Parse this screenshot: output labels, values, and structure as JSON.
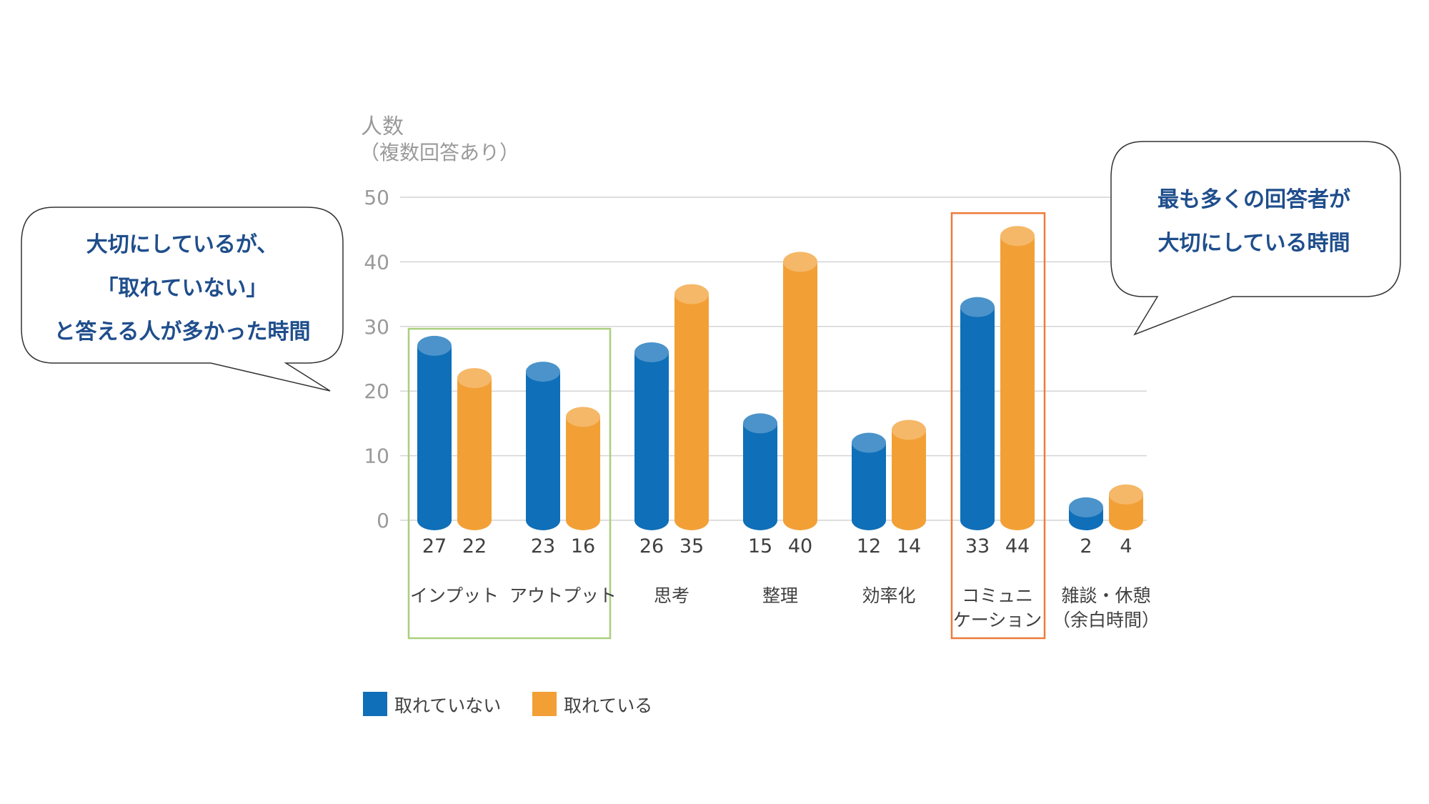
{
  "chart_data": {
    "type": "bar",
    "y_axis_title": [
      "人数",
      "（複数回答あり）"
    ],
    "ylim": [
      0,
      50
    ],
    "yticks": [
      0,
      10,
      20,
      30,
      40,
      50
    ],
    "grid": true,
    "legend_position": "bottom-left",
    "categories": [
      [
        "インプット"
      ],
      [
        "アウトプット"
      ],
      [
        "思考"
      ],
      [
        "整理"
      ],
      [
        "効率化"
      ],
      [
        "コミュニ",
        "ケーション"
      ],
      [
        "雑談・休憩",
        "（余白時間）"
      ]
    ],
    "series": [
      {
        "name": "取れていない",
        "color": "#0f6fb8",
        "values": [
          27,
          23,
          26,
          15,
          12,
          33,
          2
        ]
      },
      {
        "name": "取れている",
        "color": "#f2a036",
        "values": [
          22,
          16,
          35,
          40,
          14,
          44,
          4
        ]
      }
    ],
    "highlights": [
      {
        "categories": [
          0,
          1
        ],
        "color": "#a9cf7d"
      },
      {
        "categories": [
          5
        ],
        "color": "#ee7b3a"
      }
    ]
  },
  "callouts": {
    "left": {
      "lines": [
        "大切にしているが、",
        "「取れていない」",
        "と答える人が多かった時間"
      ]
    },
    "right": {
      "lines": [
        "最も多くの回答者が",
        "大切にしている時間"
      ]
    }
  }
}
